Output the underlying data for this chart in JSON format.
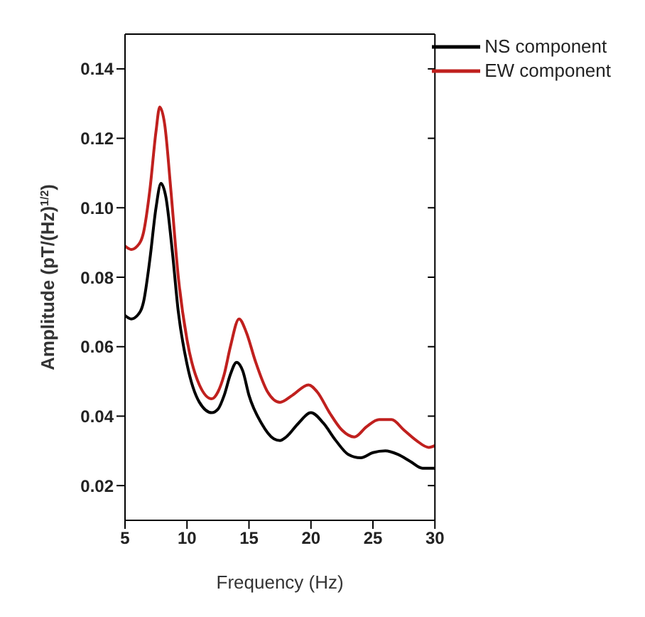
{
  "chart_data": {
    "type": "line",
    "xlabel": "Frequency (Hz)",
    "ylabel": "Amplitude (pT/(Hz)$^{1/2}$)",
    "xlim": [
      5,
      30
    ],
    "xticks": [
      5,
      10,
      15,
      20,
      25,
      30
    ],
    "ylim": [
      0.01,
      0.15
    ],
    "yticks": [
      0.02,
      0.04,
      0.06,
      0.08,
      {
        "value": 0.1,
        "label": "0.10"
      },
      0.12,
      0.14
    ],
    "grid": false,
    "legend": "top right",
    "marker": "none",
    "line_style": "solid",
    "series": [
      {
        "name": "NS component",
        "color": "#000000",
        "x": [
          5,
          5.5,
          6,
          6.5,
          7,
          7.5,
          7.9,
          8.3,
          8.8,
          9.3,
          10,
          11,
          12,
          12.5,
          13,
          13.5,
          14,
          14.5,
          15,
          16,
          17,
          17.5,
          18,
          19,
          20,
          21,
          22,
          23,
          24,
          25,
          26,
          27,
          28,
          29,
          30
        ],
        "values": [
          0.069,
          0.068,
          0.069,
          0.073,
          0.085,
          0.1,
          0.107,
          0.103,
          0.088,
          0.07,
          0.055,
          0.044,
          0.041,
          0.042,
          0.046,
          0.052,
          0.0555,
          0.053,
          0.046,
          0.038,
          0.0335,
          0.033,
          0.034,
          0.038,
          0.041,
          0.038,
          0.033,
          0.029,
          0.028,
          0.0295,
          0.03,
          0.029,
          0.027,
          0.025,
          0.025
        ]
      },
      {
        "name": "EW component",
        "color": "#c0201e",
        "x": [
          5,
          5.5,
          6,
          6.5,
          7,
          7.5,
          7.8,
          8.2,
          8.7,
          9.3,
          10,
          11,
          12,
          12.5,
          13,
          13.5,
          14.2,
          14.8,
          15.5,
          16.5,
          17.5,
          18.5,
          19.8,
          20.5,
          21.5,
          22.5,
          23.5,
          24.5,
          25.5,
          26.5,
          27.5,
          28.5,
          29.5,
          30
        ],
        "values": [
          0.089,
          0.088,
          0.089,
          0.093,
          0.105,
          0.122,
          0.129,
          0.124,
          0.105,
          0.08,
          0.062,
          0.049,
          0.045,
          0.047,
          0.052,
          0.06,
          0.068,
          0.064,
          0.056,
          0.047,
          0.044,
          0.046,
          0.049,
          0.047,
          0.041,
          0.036,
          0.034,
          0.037,
          0.039,
          0.039,
          0.036,
          0.033,
          0.031,
          0.0315
        ]
      }
    ]
  }
}
